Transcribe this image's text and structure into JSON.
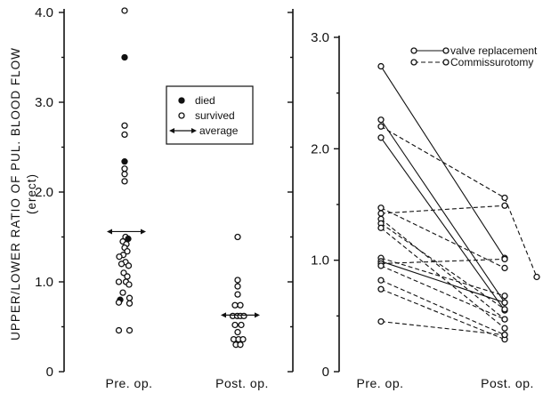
{
  "y_axis_label": {
    "line1": "UPPER/LOWER RATIO OF PUL. BLOOD FLOW",
    "line2": "(erect)"
  },
  "chart_data": [
    {
      "type": "scatter",
      "categories": [
        "Pre. op.",
        "Post. op."
      ],
      "yticks": [
        "0",
        "1.0",
        "2.0",
        "3.0",
        "4.0"
      ],
      "ylim": [
        0,
        4.0
      ],
      "legend": {
        "died": "died",
        "survived": "survived",
        "average": "average"
      },
      "series": [
        {
          "category": "Pre. op.",
          "points": [
            {
              "y": 4.02,
              "died": false,
              "dx": -0.1
            },
            {
              "y": 3.5,
              "died": true,
              "dx": -0.1
            },
            {
              "y": 2.74,
              "died": false,
              "dx": -0.1
            },
            {
              "y": 2.64,
              "died": false,
              "dx": -0.1
            },
            {
              "y": 2.34,
              "died": true,
              "dx": -0.1
            },
            {
              "y": 2.26,
              "died": false,
              "dx": -0.1
            },
            {
              "y": 2.2,
              "died": false,
              "dx": -0.1
            },
            {
              "y": 2.12,
              "died": false,
              "dx": -0.1
            },
            {
              "y": 1.5,
              "died": false,
              "dx": 0.0
            },
            {
              "y": 1.48,
              "died": true,
              "dx": 0.3
            },
            {
              "y": 1.45,
              "died": false,
              "dx": -0.3
            },
            {
              "y": 1.42,
              "died": false,
              "dx": 0.1
            },
            {
              "y": 1.38,
              "died": false,
              "dx": -0.1
            },
            {
              "y": 1.34,
              "died": false,
              "dx": 0.2
            },
            {
              "y": 1.3,
              "died": false,
              "dx": -0.25
            },
            {
              "y": 1.28,
              "died": false,
              "dx": -0.7
            },
            {
              "y": 1.22,
              "died": false,
              "dx": 0.0
            },
            {
              "y": 1.2,
              "died": false,
              "dx": -0.45
            },
            {
              "y": 1.18,
              "died": false,
              "dx": 0.35
            },
            {
              "y": 1.1,
              "died": false,
              "dx": -0.2
            },
            {
              "y": 1.06,
              "died": false,
              "dx": 0.2
            },
            {
              "y": 1.0,
              "died": false,
              "dx": -0.75
            },
            {
              "y": 1.0,
              "died": false,
              "dx": 0.05
            },
            {
              "y": 0.97,
              "died": false,
              "dx": 0.4
            },
            {
              "y": 0.88,
              "died": false,
              "dx": -0.3
            },
            {
              "y": 0.82,
              "died": false,
              "dx": 0.45
            },
            {
              "y": 0.8,
              "died": true,
              "dx": -0.6
            },
            {
              "y": 0.77,
              "died": false,
              "dx": -0.75
            },
            {
              "y": 0.76,
              "died": false,
              "dx": 0.45
            },
            {
              "y": 0.46,
              "died": false,
              "dx": -0.75
            },
            {
              "y": 0.46,
              "died": false,
              "dx": 0.45
            }
          ],
          "average": 1.56
        },
        {
          "category": "Post. op.",
          "points": [
            {
              "y": 1.5,
              "died": false,
              "dx": -0.2
            },
            {
              "y": 1.02,
              "died": false,
              "dx": -0.2
            },
            {
              "y": 0.95,
              "died": false,
              "dx": -0.2
            },
            {
              "y": 0.86,
              "died": false,
              "dx": -0.2
            },
            {
              "y": 0.74,
              "died": false,
              "dx": -0.5
            },
            {
              "y": 0.74,
              "died": false,
              "dx": 0.1
            },
            {
              "y": 0.62,
              "died": false,
              "dx": -0.75
            },
            {
              "y": 0.62,
              "died": false,
              "dx": -0.25
            },
            {
              "y": 0.62,
              "died": false,
              "dx": 0.1
            },
            {
              "y": 0.62,
              "died": false,
              "dx": 0.5
            },
            {
              "y": 0.52,
              "died": false,
              "dx": -0.5
            },
            {
              "y": 0.52,
              "died": false,
              "dx": 0.2
            },
            {
              "y": 0.44,
              "died": false,
              "dx": -0.2
            },
            {
              "y": 0.36,
              "died": false,
              "dx": -0.65
            },
            {
              "y": 0.36,
              "died": false,
              "dx": -0.1
            },
            {
              "y": 0.36,
              "died": false,
              "dx": 0.4
            },
            {
              "y": 0.3,
              "died": false,
              "dx": -0.4
            },
            {
              "y": 0.3,
              "died": false,
              "dx": 0.1
            }
          ],
          "average": 0.63
        }
      ]
    },
    {
      "type": "line",
      "categories": [
        "Pre. op.",
        "Post. op."
      ],
      "yticks": [
        "0",
        "1.0",
        "2.0",
        "3.0"
      ],
      "ylim": [
        0,
        3.0
      ],
      "legend": {
        "valve": "valve replacement",
        "comm": "Commissurotomy"
      },
      "pairs": [
        {
          "pre": 2.74,
          "post": 1.02,
          "procedure": "valve"
        },
        {
          "pre": 2.26,
          "post": 0.62,
          "procedure": "valve"
        },
        {
          "pre": 2.2,
          "post": 1.56,
          "procedure": "comm"
        },
        {
          "pre": 2.1,
          "post": 0.55,
          "procedure": "valve"
        },
        {
          "pre": 1.47,
          "post": 0.93,
          "procedure": "comm"
        },
        {
          "pre": 1.42,
          "post": 1.49,
          "procedure": "comm"
        },
        {
          "pre": 1.37,
          "post": 0.47,
          "procedure": "comm"
        },
        {
          "pre": 1.33,
          "post": 0.56,
          "procedure": "comm"
        },
        {
          "pre": 1.29,
          "post": 0.39,
          "procedure": "comm"
        },
        {
          "pre": 1.02,
          "post": 0.68,
          "procedure": "comm"
        },
        {
          "pre": 0.99,
          "post": 0.62,
          "procedure": "valve"
        },
        {
          "pre": 0.97,
          "post": 1.01,
          "procedure": "comm"
        },
        {
          "pre": 0.95,
          "post": 0.47,
          "procedure": "comm"
        },
        {
          "pre": 0.82,
          "post": 0.33,
          "procedure": "comm"
        },
        {
          "pre": 0.74,
          "post": 0.29,
          "procedure": "comm"
        },
        {
          "pre": 0.45,
          "post": 0.33,
          "procedure": "comm"
        }
      ],
      "extra_points": [
        {
          "x": "beyond-post",
          "y": 0.85,
          "from": 1.56
        }
      ]
    }
  ]
}
